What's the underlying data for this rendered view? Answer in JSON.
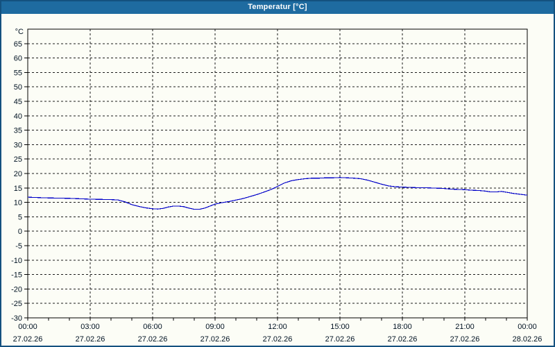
{
  "window": {
    "title": "Temperatur [°C]"
  },
  "colors": {
    "titlebar_bg": "#1e6ba0",
    "titlebar_text": "#ffffff",
    "frame": "#14517f",
    "background": "#fcfdf6",
    "grid": "#1a1a1a",
    "axis_text": "#001222",
    "series_line": "#0000c8"
  },
  "chart_data": {
    "type": "line",
    "title": "Temperatur [°C]",
    "y_unit": "°C",
    "ylim": [
      -30,
      70
    ],
    "y_ticks": [
      65,
      60,
      55,
      50,
      45,
      40,
      35,
      30,
      25,
      20,
      15,
      10,
      5,
      0,
      -5,
      -10,
      -15,
      -20,
      -25,
      -30
    ],
    "x_hours_range": [
      0,
      24
    ],
    "x_minor_tick_hours": 1,
    "grid_style": "dashed",
    "legend": "none",
    "x_major_labels": [
      {
        "hour": 0,
        "time": "00:00",
        "date": "27.02.26"
      },
      {
        "hour": 3,
        "time": "03:00",
        "date": "27.02.26"
      },
      {
        "hour": 6,
        "time": "06:00",
        "date": "27.02.26"
      },
      {
        "hour": 9,
        "time": "09:00",
        "date": "27.02.26"
      },
      {
        "hour": 12,
        "time": "12:00",
        "date": "27.02.26"
      },
      {
        "hour": 15,
        "time": "15:00",
        "date": "27.02.26"
      },
      {
        "hour": 18,
        "time": "18:00",
        "date": "27.02.26"
      },
      {
        "hour": 21,
        "time": "21:00",
        "date": "27.02.26"
      },
      {
        "hour": 24,
        "time": "00:00",
        "date": "28.02.26"
      }
    ],
    "series": [
      {
        "name": "Temperatur",
        "color": "#0000c8",
        "points_hour_degC": [
          [
            0,
            11.8
          ],
          [
            0.33,
            11.7
          ],
          [
            0.67,
            11.6
          ],
          [
            1,
            11.55
          ],
          [
            1.33,
            11.5
          ],
          [
            1.67,
            11.45
          ],
          [
            2,
            11.4
          ],
          [
            2.33,
            11.3
          ],
          [
            2.67,
            11.2
          ],
          [
            3,
            11.1
          ],
          [
            3.33,
            11.05
          ],
          [
            3.67,
            11.0
          ],
          [
            4,
            10.95
          ],
          [
            4.33,
            10.85
          ],
          [
            4.67,
            10.2
          ],
          [
            5,
            9.2
          ],
          [
            5.33,
            8.6
          ],
          [
            5.67,
            8.1
          ],
          [
            6,
            7.8
          ],
          [
            6.25,
            7.7
          ],
          [
            6.5,
            7.9
          ],
          [
            6.75,
            8.4
          ],
          [
            7,
            8.7
          ],
          [
            7.25,
            8.7
          ],
          [
            7.5,
            8.5
          ],
          [
            7.75,
            8.0
          ],
          [
            8,
            7.6
          ],
          [
            8.25,
            7.6
          ],
          [
            8.5,
            8.0
          ],
          [
            8.75,
            8.7
          ],
          [
            9,
            9.4
          ],
          [
            9.33,
            9.9
          ],
          [
            9.67,
            10.3
          ],
          [
            10,
            10.8
          ],
          [
            10.33,
            11.3
          ],
          [
            10.67,
            12.0
          ],
          [
            11,
            12.7
          ],
          [
            11.33,
            13.5
          ],
          [
            11.67,
            14.4
          ],
          [
            12,
            15.5
          ],
          [
            12.33,
            16.7
          ],
          [
            12.67,
            17.5
          ],
          [
            13,
            17.9
          ],
          [
            13.33,
            18.2
          ],
          [
            13.67,
            18.4
          ],
          [
            14,
            18.4
          ],
          [
            14.33,
            18.5
          ],
          [
            14.67,
            18.5
          ],
          [
            15,
            18.6
          ],
          [
            15.33,
            18.5
          ],
          [
            15.67,
            18.4
          ],
          [
            16,
            18.2
          ],
          [
            16.33,
            17.7
          ],
          [
            16.67,
            17.0
          ],
          [
            17,
            16.3
          ],
          [
            17.33,
            15.7
          ],
          [
            17.67,
            15.4
          ],
          [
            18,
            15.3
          ],
          [
            18.33,
            15.2
          ],
          [
            18.67,
            15.1
          ],
          [
            19,
            15.1
          ],
          [
            19.33,
            15.0
          ],
          [
            19.67,
            14.9
          ],
          [
            20,
            14.8
          ],
          [
            20.33,
            14.6
          ],
          [
            20.67,
            14.5
          ],
          [
            21,
            14.4
          ],
          [
            21.33,
            14.2
          ],
          [
            21.67,
            14.1
          ],
          [
            22,
            13.9
          ],
          [
            22.25,
            13.6
          ],
          [
            22.5,
            13.6
          ],
          [
            22.75,
            13.8
          ],
          [
            23,
            13.5
          ],
          [
            23.33,
            13.1
          ],
          [
            23.67,
            12.8
          ],
          [
            24,
            12.5
          ]
        ]
      }
    ]
  }
}
